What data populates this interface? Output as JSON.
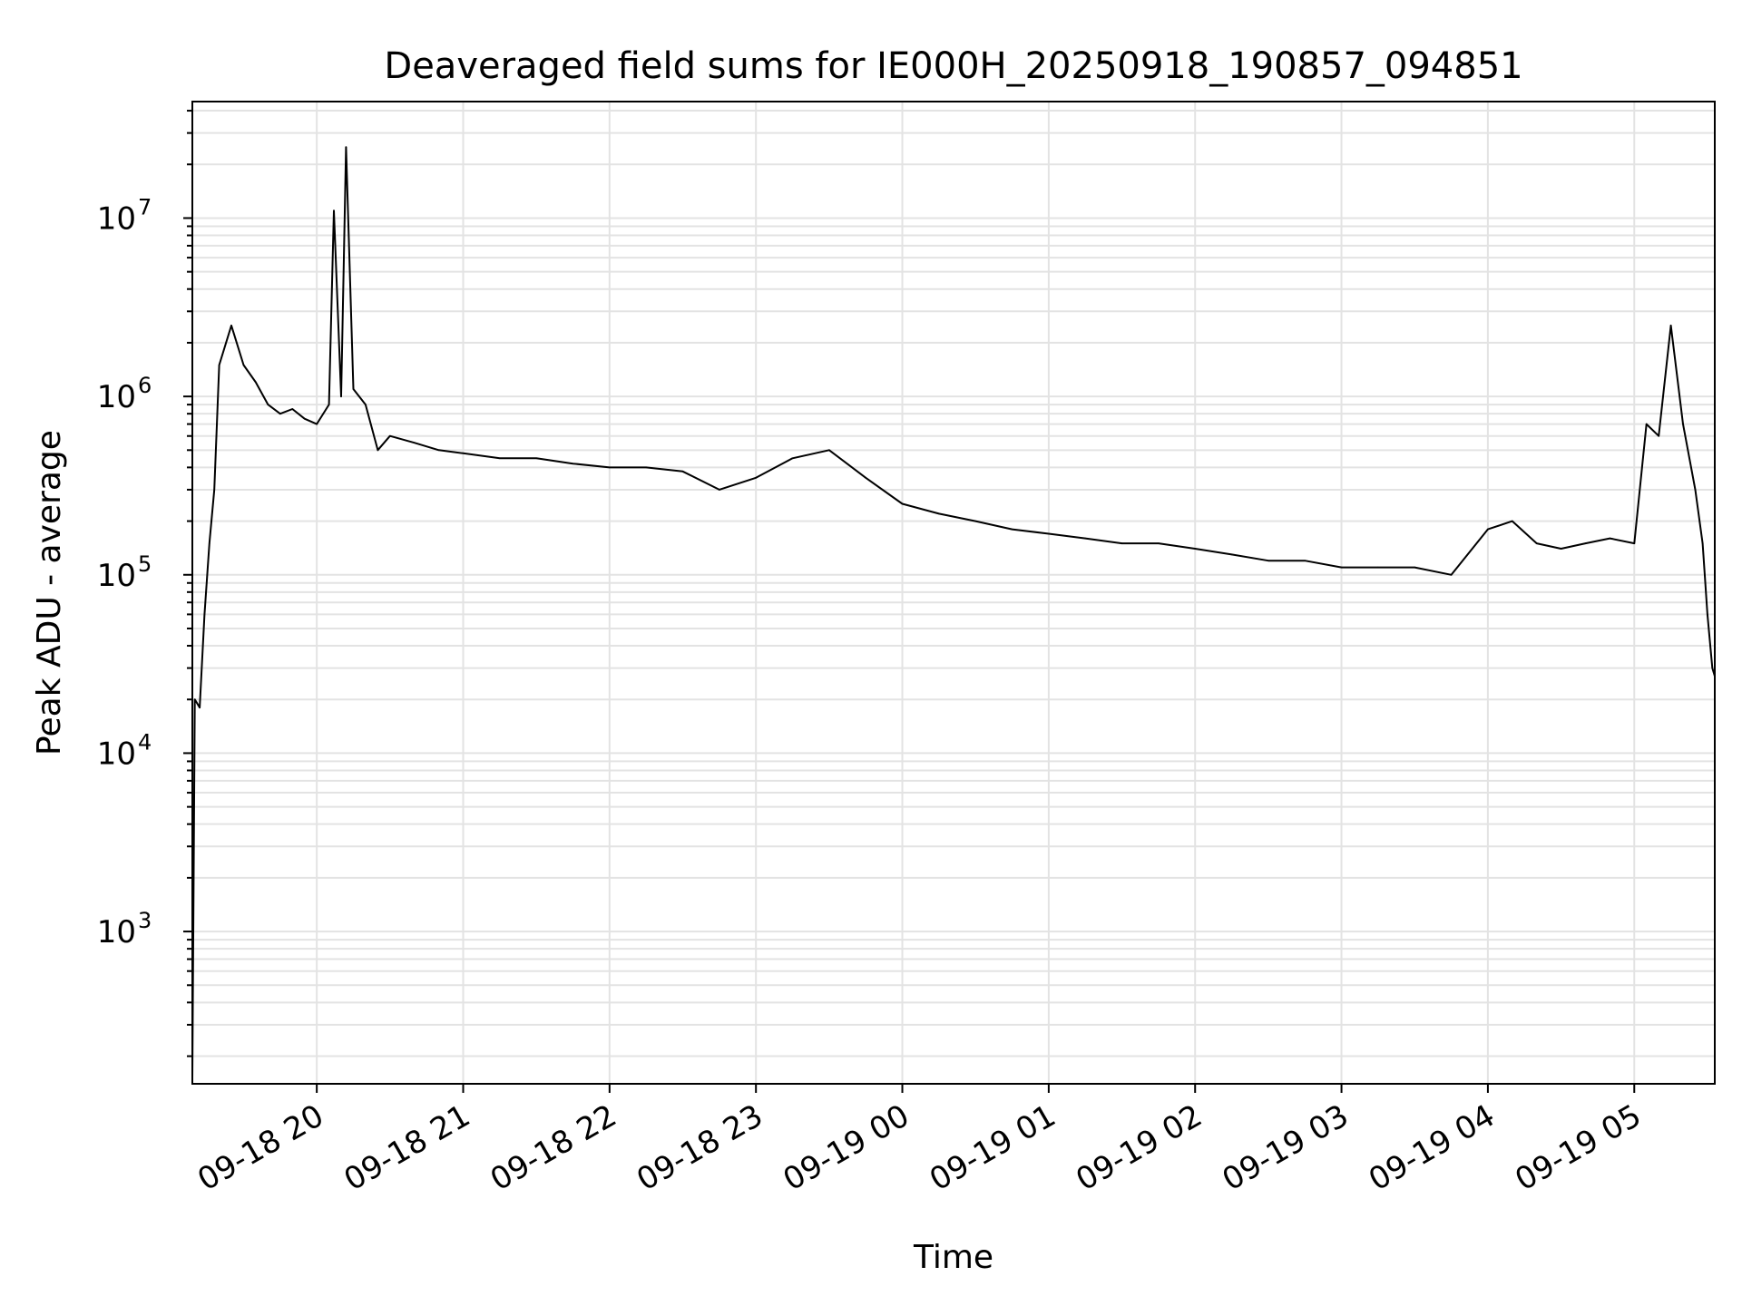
{
  "chart_data": {
    "type": "line",
    "title": "Deaveraged field sums for IE000H_20250918_190857_094851",
    "xlabel": "Time",
    "ylabel": "Peak ADU - average",
    "yscale": "log",
    "ylim": [
      140,
      45000000
    ],
    "xlim": [
      "2025-09-18 19:09:00",
      "2025-09-19 05:33:00"
    ],
    "grid": true,
    "x_ticks": [
      {
        "at": "2025-09-18 20:00:00",
        "label": "09-18 20"
      },
      {
        "at": "2025-09-18 21:00:00",
        "label": "09-18 21"
      },
      {
        "at": "2025-09-18 22:00:00",
        "label": "09-18 22"
      },
      {
        "at": "2025-09-18 23:00:00",
        "label": "09-18 23"
      },
      {
        "at": "2025-09-19 00:00:00",
        "label": "09-19 00"
      },
      {
        "at": "2025-09-19 01:00:00",
        "label": "09-19 01"
      },
      {
        "at": "2025-09-19 02:00:00",
        "label": "09-19 02"
      },
      {
        "at": "2025-09-19 03:00:00",
        "label": "09-19 03"
      },
      {
        "at": "2025-09-19 04:00:00",
        "label": "09-19 04"
      },
      {
        "at": "2025-09-19 05:00:00",
        "label": "09-19 05"
      }
    ],
    "y_ticks": [
      {
        "value": 1000,
        "base": "10",
        "exp": "3"
      },
      {
        "value": 10000,
        "base": "10",
        "exp": "4"
      },
      {
        "value": 100000,
        "base": "10",
        "exp": "5"
      },
      {
        "value": 1000000,
        "base": "10",
        "exp": "6"
      },
      {
        "value": 10000000,
        "base": "10",
        "exp": "7"
      }
    ],
    "series": [
      {
        "color": "#000000",
        "x": [
          "2025-09-18 19:09:00",
          "2025-09-18 19:10:00",
          "2025-09-18 19:12:00",
          "2025-09-18 19:14:00",
          "2025-09-18 19:16:00",
          "2025-09-18 19:18:00",
          "2025-09-18 19:20:00",
          "2025-09-18 19:25:00",
          "2025-09-18 19:30:00",
          "2025-09-18 19:35:00",
          "2025-09-18 19:40:00",
          "2025-09-18 19:45:00",
          "2025-09-18 19:50:00",
          "2025-09-18 19:55:00",
          "2025-09-18 20:00:00",
          "2025-09-18 20:05:00",
          "2025-09-18 20:07:00",
          "2025-09-18 20:10:00",
          "2025-09-18 20:12:00",
          "2025-09-18 20:15:00",
          "2025-09-18 20:20:00",
          "2025-09-18 20:25:00",
          "2025-09-18 20:30:00",
          "2025-09-18 20:40:00",
          "2025-09-18 20:50:00",
          "2025-09-18 21:00:00",
          "2025-09-18 21:15:00",
          "2025-09-18 21:30:00",
          "2025-09-18 21:45:00",
          "2025-09-18 22:00:00",
          "2025-09-18 22:15:00",
          "2025-09-18 22:30:00",
          "2025-09-18 22:45:00",
          "2025-09-18 23:00:00",
          "2025-09-18 23:15:00",
          "2025-09-18 23:30:00",
          "2025-09-18 23:45:00",
          "2025-09-19 00:00:00",
          "2025-09-19 00:15:00",
          "2025-09-19 00:30:00",
          "2025-09-19 00:45:00",
          "2025-09-19 01:00:00",
          "2025-09-19 01:15:00",
          "2025-09-19 01:30:00",
          "2025-09-19 01:45:00",
          "2025-09-19 02:00:00",
          "2025-09-19 02:15:00",
          "2025-09-19 02:30:00",
          "2025-09-19 02:45:00",
          "2025-09-19 03:00:00",
          "2025-09-19 03:15:00",
          "2025-09-19 03:30:00",
          "2025-09-19 03:45:00",
          "2025-09-19 04:00:00",
          "2025-09-19 04:10:00",
          "2025-09-19 04:20:00",
          "2025-09-19 04:30:00",
          "2025-09-19 04:40:00",
          "2025-09-19 04:50:00",
          "2025-09-19 05:00:00",
          "2025-09-19 05:05:00",
          "2025-09-19 05:10:00",
          "2025-09-19 05:15:00",
          "2025-09-19 05:20:00",
          "2025-09-19 05:25:00",
          "2025-09-19 05:28:00",
          "2025-09-19 05:30:00",
          "2025-09-19 05:32:00",
          "2025-09-19 05:33:00"
        ],
        "y": [
          150,
          20000,
          18000,
          60000,
          150000,
          300000,
          1500000,
          2500000,
          1500000,
          1200000,
          900000,
          800000,
          850000,
          750000,
          700000,
          900000,
          11000000,
          1000000,
          25000000,
          1100000,
          900000,
          500000,
          600000,
          550000,
          500000,
          480000,
          450000,
          450000,
          420000,
          400000,
          400000,
          380000,
          300000,
          350000,
          450000,
          500000,
          350000,
          250000,
          220000,
          200000,
          180000,
          170000,
          160000,
          150000,
          150000,
          140000,
          130000,
          120000,
          120000,
          110000,
          110000,
          110000,
          100000,
          180000,
          200000,
          150000,
          140000,
          150000,
          160000,
          150000,
          700000,
          600000,
          2500000,
          700000,
          300000,
          150000,
          60000,
          30000,
          27000
        ]
      }
    ]
  }
}
